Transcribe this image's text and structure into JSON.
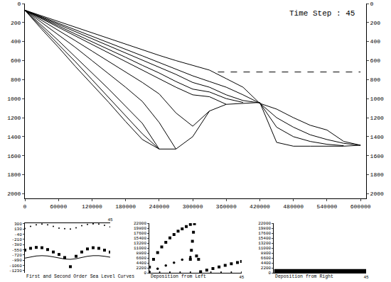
{
  "chart_data": [
    {
      "type": "line",
      "annotation": "Time Step : 45",
      "x": [
        0,
        30000,
        60000,
        90000,
        120000,
        150000,
        180000,
        210000,
        240000,
        270000,
        300000,
        330000,
        360000,
        390000,
        420000,
        450000,
        480000,
        510000,
        540000,
        570000,
        600000
      ],
      "series": [
        {
          "color": "#000000",
          "line_style": "solid",
          "values": [
            70,
            270,
            460,
            660,
            850,
            1040,
            1240,
            1430,
            1530,
            1530,
            1400,
            1130,
            1060,
            1050,
            1040,
            1460,
            1500,
            1500,
            1500,
            1500,
            1490
          ]
        },
        {
          "color": "#000000",
          "line_style": "solid",
          "values": [
            70,
            250,
            430,
            610,
            800,
            990,
            1180,
            1370,
            1530,
            null,
            null,
            null,
            null,
            null,
            null,
            null,
            null,
            null,
            null,
            null,
            null
          ]
        },
        {
          "color": "#000000",
          "line_style": "solid",
          "values": [
            70,
            230,
            390,
            560,
            730,
            900,
            1080,
            1260,
            1530,
            null,
            null,
            null,
            null,
            null,
            null,
            null,
            null,
            null,
            null,
            null,
            null
          ]
        },
        {
          "color": "#000000",
          "line_style": "solid",
          "values": [
            70,
            200,
            330,
            460,
            600,
            740,
            880,
            1030,
            1250,
            1530,
            null,
            null,
            null,
            null,
            null,
            null,
            null,
            null,
            null,
            null,
            null
          ]
        },
        {
          "color": "#000000",
          "line_style": "solid",
          "values": [
            70,
            175,
            280,
            390,
            500,
            610,
            720,
            830,
            950,
            1150,
            1290,
            1130,
            null,
            null,
            null,
            null,
            null,
            null,
            null,
            null,
            null
          ]
        },
        {
          "color": "#000000",
          "line_style": "solid",
          "values": [
            70,
            160,
            250,
            340,
            430,
            520,
            610,
            700,
            790,
            880,
            960,
            980,
            1060,
            null,
            null,
            null,
            null,
            null,
            null,
            null,
            null
          ]
        },
        {
          "color": "#000000",
          "line_style": "solid",
          "values": [
            70,
            150,
            235,
            320,
            400,
            480,
            565,
            650,
            730,
            820,
            900,
            930,
            1000,
            1040,
            null,
            null,
            null,
            null,
            null,
            null,
            null
          ]
        },
        {
          "color": "#000000",
          "line_style": "solid",
          "values": [
            70,
            145,
            220,
            295,
            370,
            445,
            520,
            595,
            670,
            745,
            830,
            880,
            960,
            1020,
            1045,
            1300,
            1400,
            1450,
            1480,
            1495,
            null
          ]
        },
        {
          "color": "#000000",
          "line_style": "solid",
          "values": [
            70,
            138,
            205,
            275,
            340,
            410,
            480,
            550,
            620,
            690,
            760,
            820,
            880,
            960,
            1048,
            1200,
            1300,
            1380,
            1430,
            1470,
            1490
          ]
        },
        {
          "color": "#000000",
          "line_style": "solid",
          "values": [
            70,
            130,
            190,
            250,
            310,
            370,
            430,
            490,
            545,
            600,
            650,
            700,
            790,
            880,
            1050,
            1110,
            1200,
            1280,
            1330,
            1450,
            1490
          ]
        },
        {
          "color": "#000000",
          "line_style": "dashed",
          "x": [
            345000,
            600000
          ],
          "values": [
            720,
            720
          ]
        }
      ],
      "xlim": [
        0,
        610000
      ],
      "ylim": [
        0,
        2050
      ],
      "xticks": [
        0,
        60000,
        120000,
        180000,
        240000,
        300000,
        360000,
        420000,
        480000,
        540000,
        600000
      ],
      "yticks": [
        0,
        200,
        400,
        600,
        800,
        1000,
        1200,
        1400,
        1600,
        1800,
        2000
      ]
    },
    {
      "type": "scatter",
      "xlabel": "First and Second Order Sea Level Curves",
      "x": [
        0,
        3,
        6,
        9,
        12,
        15,
        18,
        21,
        24,
        27,
        30,
        33,
        36,
        39,
        42,
        45
      ],
      "series": [
        {
          "color": "#000000",
          "marker": "dot",
          "values": [
            150,
            220,
            270,
            290,
            270,
            220,
            160,
            140,
            130,
            170,
            240,
            280,
            300,
            290,
            250,
            200
          ]
        },
        {
          "color": "#000000",
          "marker": "square",
          "values": [
            -560,
            -500,
            -470,
            -480,
            -540,
            -620,
            -700,
            -800,
            -1100,
            -760,
            -620,
            -520,
            -480,
            -500,
            -560,
            -620
          ]
        },
        {
          "color": "#000000",
          "line_style": "solid",
          "values": [
            -820,
            -780,
            -750,
            -740,
            -750,
            -780,
            -820,
            -850,
            -860,
            -840,
            -800,
            -760,
            -740,
            -740,
            -760,
            -790
          ]
        }
      ],
      "xlim": [
        0,
        45
      ],
      "ylim": [
        -1300,
        320
      ],
      "xticks": [
        45
      ],
      "yticks": [
        300,
        130,
        -40,
        -210,
        -380,
        -550,
        -720,
        -890,
        -1060,
        -1230
      ]
    },
    {
      "type": "scatter",
      "xlabel": "Deposition from Left",
      "series": [
        {
          "color": "#000000",
          "marker": "square",
          "x": [
            0,
            2,
            4,
            6,
            8,
            10,
            12,
            14,
            16,
            18,
            20
          ],
          "values": [
            2500,
            6000,
            9000,
            11500,
            13500,
            15500,
            17000,
            18500,
            19500,
            20500,
            21500
          ]
        },
        {
          "color": "#000000",
          "marker": "square",
          "x": [
            20,
            20.5,
            21,
            21.5,
            22,
            23,
            24
          ],
          "values": [
            6000,
            10000,
            14000,
            18000,
            21800,
            7500,
            6000
          ]
        },
        {
          "color": "#000000",
          "marker": "square",
          "x": [
            25,
            28,
            31,
            34,
            37,
            40,
            43,
            45
          ],
          "values": [
            500,
            1200,
            1900,
            2600,
            3300,
            4000,
            4600,
            5000
          ]
        },
        {
          "color": "#000000",
          "marker": "circle",
          "x": [
            0,
            4,
            8,
            12,
            16,
            20
          ],
          "values": [
            500,
            1800,
            3200,
            4500,
            5800,
            7000
          ]
        },
        {
          "color": "#000000",
          "marker": "dot",
          "x": [
            0,
            5,
            10,
            15,
            20,
            25,
            30,
            35,
            40,
            45
          ],
          "values": [
            300,
            300,
            300,
            300,
            300,
            300,
            300,
            300,
            300,
            300
          ]
        }
      ],
      "xlim": [
        0,
        45
      ],
      "ylim": [
        0,
        22000
      ],
      "xticks": [
        45
      ],
      "yticks": [
        0,
        2200,
        4400,
        6600,
        8800,
        11000,
        13200,
        15400,
        17600,
        19800,
        22000
      ]
    },
    {
      "type": "scatter",
      "xlabel": "Deposition from Right",
      "series": [
        {
          "color": "#000000",
          "line_style": "thick",
          "x": [
            0,
            45
          ],
          "values": [
            700,
            700
          ]
        }
      ],
      "xlim": [
        0,
        45
      ],
      "ylim": [
        0,
        22000
      ],
      "xticks": [
        45
      ],
      "yticks": [
        0,
        2200,
        4400,
        6600,
        8800,
        11000,
        13200,
        15400,
        17600,
        19800,
        22000
      ]
    }
  ]
}
